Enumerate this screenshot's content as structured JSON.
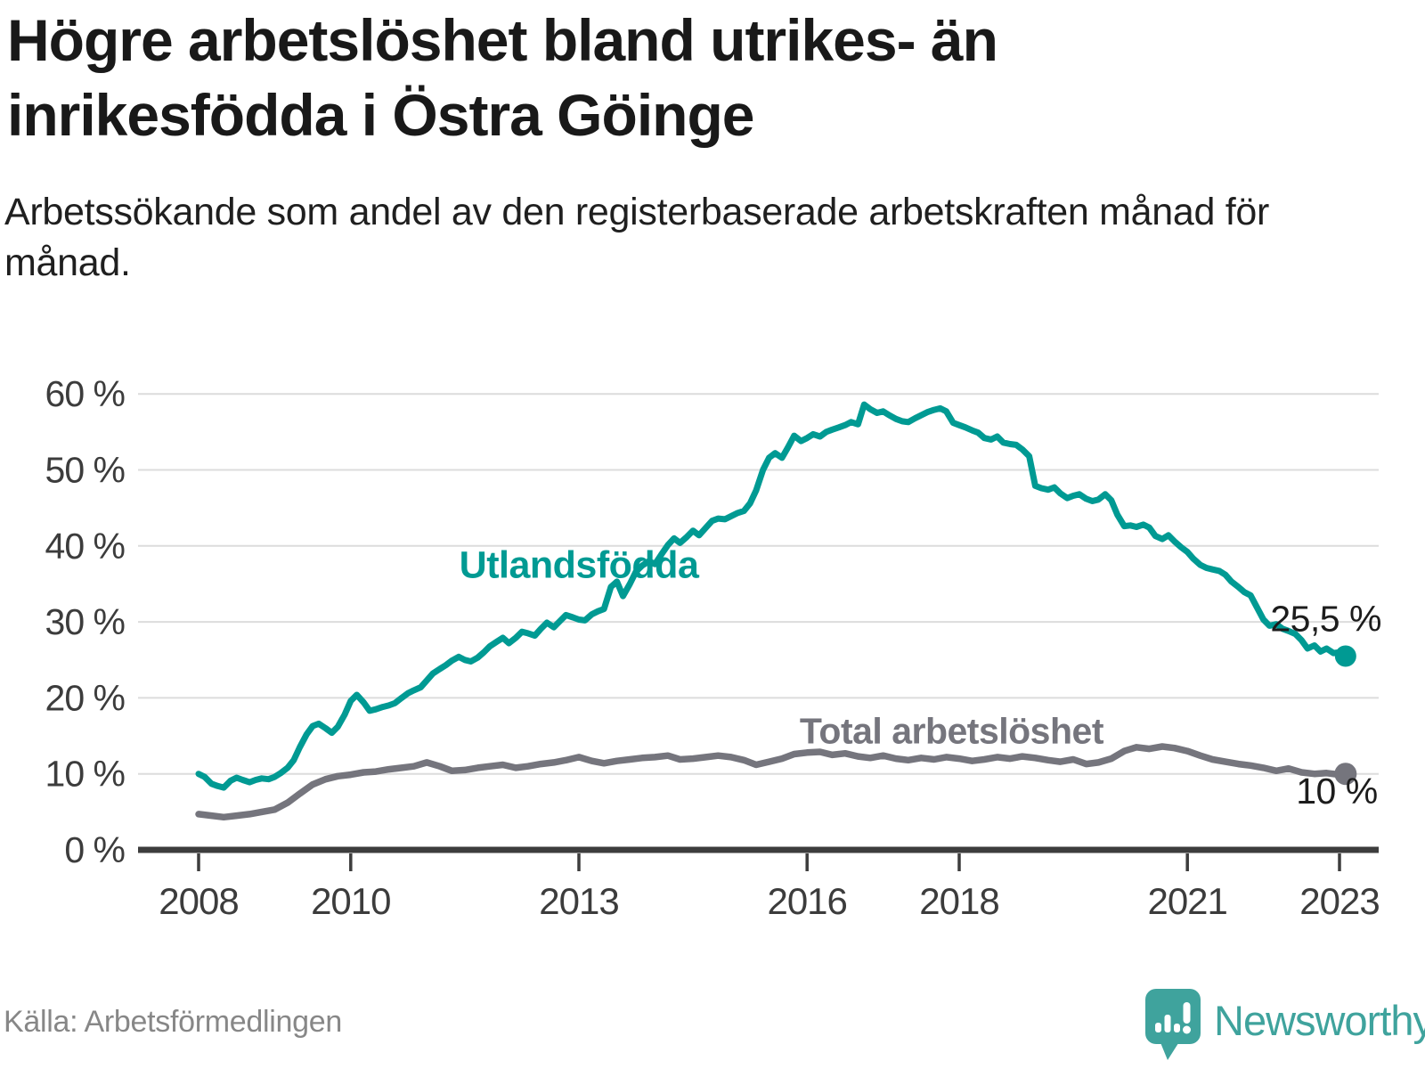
{
  "header": {
    "title": "Högre arbetslöshet bland utrikes- än inrikesfödda i Östra Göinge",
    "subtitle": "Arbetssökande som andel av den registerbaserade arbetskraften månad för månad."
  },
  "footer": {
    "source": "Källa: Arbetsförmedlingen",
    "brand": "Newsworthy"
  },
  "colors": {
    "foreign_born_line": "#009a93",
    "total_line": "#75757d",
    "grid": "#dcdcdc",
    "axis": "#3d3d3d",
    "tick_text": "#3c3c3c",
    "value_label": "#1c1c1c",
    "brand_teal": "#3fa39d"
  },
  "chart_data": {
    "type": "line",
    "title": "Högre arbetslöshet bland utrikes- än inrikesfödda i Östra Göinge",
    "xlabel": "",
    "ylabel": "Arbetssökande som andel av den registerbaserade arbetskraften",
    "xlim": [
      2007.2,
      2023.55
    ],
    "ylim": [
      0,
      62
    ],
    "grid": true,
    "x_ticks": [
      {
        "value": 2008,
        "label": "2008"
      },
      {
        "value": 2010,
        "label": "2010"
      },
      {
        "value": 2013,
        "label": "2013"
      },
      {
        "value": 2016,
        "label": "2016"
      },
      {
        "value": 2018,
        "label": "2018"
      },
      {
        "value": 2021,
        "label": "2021"
      },
      {
        "value": 2023,
        "label": "2023"
      }
    ],
    "y_ticks": [
      {
        "value": 0,
        "label": "0 %"
      },
      {
        "value": 10,
        "label": "10 %"
      },
      {
        "value": 20,
        "label": "20 %"
      },
      {
        "value": 30,
        "label": "30 %"
      },
      {
        "value": 40,
        "label": "40 %"
      },
      {
        "value": 50,
        "label": "50 %"
      },
      {
        "value": 60,
        "label": "60 %"
      }
    ],
    "series": [
      {
        "name": "Utlandsfödda",
        "color": "#009a93",
        "line_width": 7,
        "end_dot_radius": 12,
        "last_value": 25.5,
        "end_label": {
          "text": "25,5 %",
          "x": 2023.55,
          "y": 28.8,
          "anchor": "end"
        },
        "name_label": {
          "x": 2013.0,
          "y": 35.8,
          "anchor": "middle",
          "font_size": 43
        },
        "points": [
          [
            2008.0,
            10.0
          ],
          [
            2008.08,
            9.6
          ],
          [
            2008.17,
            8.7
          ],
          [
            2008.25,
            8.4
          ],
          [
            2008.33,
            8.2
          ],
          [
            2008.42,
            9.1
          ],
          [
            2008.5,
            9.5
          ],
          [
            2008.58,
            9.2
          ],
          [
            2008.67,
            8.9
          ],
          [
            2008.75,
            9.2
          ],
          [
            2008.83,
            9.4
          ],
          [
            2008.92,
            9.3
          ],
          [
            2009.0,
            9.6
          ],
          [
            2009.08,
            10.1
          ],
          [
            2009.17,
            10.8
          ],
          [
            2009.25,
            11.8
          ],
          [
            2009.33,
            13.5
          ],
          [
            2009.42,
            15.2
          ],
          [
            2009.5,
            16.3
          ],
          [
            2009.58,
            16.6
          ],
          [
            2009.67,
            16.0
          ],
          [
            2009.75,
            15.4
          ],
          [
            2009.83,
            16.2
          ],
          [
            2009.92,
            17.8
          ],
          [
            2010.0,
            19.6
          ],
          [
            2010.08,
            20.4
          ],
          [
            2010.17,
            19.4
          ],
          [
            2010.25,
            18.3
          ],
          [
            2010.33,
            18.5
          ],
          [
            2010.42,
            18.8
          ],
          [
            2010.5,
            19.0
          ],
          [
            2010.58,
            19.3
          ],
          [
            2010.67,
            20.0
          ],
          [
            2010.75,
            20.6
          ],
          [
            2010.83,
            21.0
          ],
          [
            2010.92,
            21.4
          ],
          [
            2011.0,
            22.3
          ],
          [
            2011.08,
            23.2
          ],
          [
            2011.17,
            23.8
          ],
          [
            2011.25,
            24.3
          ],
          [
            2011.33,
            24.9
          ],
          [
            2011.42,
            25.4
          ],
          [
            2011.5,
            25.0
          ],
          [
            2011.58,
            24.8
          ],
          [
            2011.67,
            25.3
          ],
          [
            2011.75,
            26.0
          ],
          [
            2011.83,
            26.8
          ],
          [
            2011.92,
            27.4
          ],
          [
            2012.0,
            27.9
          ],
          [
            2012.08,
            27.2
          ],
          [
            2012.17,
            27.9
          ],
          [
            2012.25,
            28.7
          ],
          [
            2012.33,
            28.5
          ],
          [
            2012.42,
            28.2
          ],
          [
            2012.5,
            29.1
          ],
          [
            2012.58,
            29.9
          ],
          [
            2012.67,
            29.3
          ],
          [
            2012.75,
            30.1
          ],
          [
            2012.83,
            30.9
          ],
          [
            2012.92,
            30.6
          ],
          [
            2013.0,
            30.3
          ],
          [
            2013.08,
            30.2
          ],
          [
            2013.17,
            31.0
          ],
          [
            2013.25,
            31.4
          ],
          [
            2013.33,
            31.7
          ],
          [
            2013.42,
            34.6
          ],
          [
            2013.5,
            35.3
          ],
          [
            2013.58,
            33.4
          ],
          [
            2013.67,
            35.0
          ],
          [
            2013.75,
            36.6
          ],
          [
            2013.83,
            37.4
          ],
          [
            2013.92,
            38.0
          ],
          [
            2014.0,
            37.6
          ],
          [
            2014.08,
            38.8
          ],
          [
            2014.17,
            40.1
          ],
          [
            2014.25,
            41.0
          ],
          [
            2014.33,
            40.4
          ],
          [
            2014.42,
            41.2
          ],
          [
            2014.5,
            42.0
          ],
          [
            2014.58,
            41.4
          ],
          [
            2014.67,
            42.4
          ],
          [
            2014.75,
            43.3
          ],
          [
            2014.83,
            43.6
          ],
          [
            2014.92,
            43.5
          ],
          [
            2015.0,
            43.9
          ],
          [
            2015.08,
            44.3
          ],
          [
            2015.17,
            44.6
          ],
          [
            2015.25,
            45.6
          ],
          [
            2015.33,
            47.3
          ],
          [
            2015.42,
            50.0
          ],
          [
            2015.5,
            51.6
          ],
          [
            2015.58,
            52.2
          ],
          [
            2015.67,
            51.6
          ],
          [
            2015.75,
            53.0
          ],
          [
            2015.83,
            54.5
          ],
          [
            2015.92,
            53.8
          ],
          [
            2016.0,
            54.2
          ],
          [
            2016.08,
            54.7
          ],
          [
            2016.17,
            54.4
          ],
          [
            2016.25,
            55.0
          ],
          [
            2016.33,
            55.3
          ],
          [
            2016.42,
            55.6
          ],
          [
            2016.5,
            55.9
          ],
          [
            2016.58,
            56.3
          ],
          [
            2016.67,
            56.0
          ],
          [
            2016.75,
            58.6
          ],
          [
            2016.83,
            58.0
          ],
          [
            2016.92,
            57.5
          ],
          [
            2017.0,
            57.7
          ],
          [
            2017.08,
            57.2
          ],
          [
            2017.17,
            56.7
          ],
          [
            2017.25,
            56.4
          ],
          [
            2017.33,
            56.3
          ],
          [
            2017.42,
            56.8
          ],
          [
            2017.5,
            57.2
          ],
          [
            2017.58,
            57.6
          ],
          [
            2017.67,
            57.9
          ],
          [
            2017.75,
            58.1
          ],
          [
            2017.83,
            57.7
          ],
          [
            2017.92,
            56.2
          ],
          [
            2018.0,
            55.9
          ],
          [
            2018.08,
            55.6
          ],
          [
            2018.17,
            55.2
          ],
          [
            2018.25,
            54.9
          ],
          [
            2018.33,
            54.2
          ],
          [
            2018.42,
            54.0
          ],
          [
            2018.5,
            54.4
          ],
          [
            2018.58,
            53.6
          ],
          [
            2018.67,
            53.4
          ],
          [
            2018.75,
            53.3
          ],
          [
            2018.83,
            52.7
          ],
          [
            2018.92,
            51.8
          ],
          [
            2019.0,
            47.9
          ],
          [
            2019.08,
            47.6
          ],
          [
            2019.17,
            47.4
          ],
          [
            2019.25,
            47.7
          ],
          [
            2019.33,
            46.9
          ],
          [
            2019.42,
            46.3
          ],
          [
            2019.5,
            46.6
          ],
          [
            2019.58,
            46.8
          ],
          [
            2019.67,
            46.2
          ],
          [
            2019.75,
            45.9
          ],
          [
            2019.83,
            46.1
          ],
          [
            2019.92,
            46.8
          ],
          [
            2020.0,
            46.0
          ],
          [
            2020.08,
            44.1
          ],
          [
            2020.17,
            42.6
          ],
          [
            2020.25,
            42.7
          ],
          [
            2020.33,
            42.5
          ],
          [
            2020.42,
            42.8
          ],
          [
            2020.5,
            42.4
          ],
          [
            2020.58,
            41.3
          ],
          [
            2020.67,
            40.9
          ],
          [
            2020.75,
            41.4
          ],
          [
            2020.83,
            40.6
          ],
          [
            2020.92,
            39.8
          ],
          [
            2021.0,
            39.2
          ],
          [
            2021.08,
            38.3
          ],
          [
            2021.17,
            37.5
          ],
          [
            2021.25,
            37.1
          ],
          [
            2021.33,
            36.9
          ],
          [
            2021.42,
            36.7
          ],
          [
            2021.5,
            36.2
          ],
          [
            2021.58,
            35.3
          ],
          [
            2021.67,
            34.6
          ],
          [
            2021.75,
            33.9
          ],
          [
            2021.83,
            33.5
          ],
          [
            2021.92,
            31.8
          ],
          [
            2022.0,
            30.3
          ],
          [
            2022.08,
            29.5
          ],
          [
            2022.17,
            29.7
          ],
          [
            2022.25,
            29.1
          ],
          [
            2022.33,
            28.8
          ],
          [
            2022.42,
            28.4
          ],
          [
            2022.5,
            27.6
          ],
          [
            2022.58,
            26.5
          ],
          [
            2022.67,
            26.9
          ],
          [
            2022.75,
            26.1
          ],
          [
            2022.83,
            26.5
          ],
          [
            2022.92,
            25.9
          ],
          [
            2023.0,
            26.0
          ],
          [
            2023.08,
            25.5
          ]
        ]
      },
      {
        "name": "Total arbetslöshet",
        "color": "#75757d",
        "line_width": 7.5,
        "end_dot_radius": 12.5,
        "last_value": 10,
        "end_label": {
          "text": "10 %",
          "x": 2023.5,
          "y": 6.1,
          "anchor": "end"
        },
        "name_label": {
          "x": 2017.9,
          "y": 14.0,
          "anchor": "middle",
          "font_size": 41
        },
        "points": [
          [
            2008.0,
            4.7
          ],
          [
            2008.17,
            4.5
          ],
          [
            2008.33,
            4.3
          ],
          [
            2008.5,
            4.5
          ],
          [
            2008.67,
            4.7
          ],
          [
            2008.83,
            5.0
          ],
          [
            2009.0,
            5.3
          ],
          [
            2009.17,
            6.2
          ],
          [
            2009.33,
            7.4
          ],
          [
            2009.5,
            8.6
          ],
          [
            2009.67,
            9.3
          ],
          [
            2009.83,
            9.7
          ],
          [
            2010.0,
            9.9
          ],
          [
            2010.17,
            10.2
          ],
          [
            2010.33,
            10.3
          ],
          [
            2010.5,
            10.6
          ],
          [
            2010.67,
            10.8
          ],
          [
            2010.83,
            11.0
          ],
          [
            2011.0,
            11.5
          ],
          [
            2011.17,
            11.0
          ],
          [
            2011.33,
            10.4
          ],
          [
            2011.5,
            10.5
          ],
          [
            2011.67,
            10.8
          ],
          [
            2011.83,
            11.0
          ],
          [
            2012.0,
            11.2
          ],
          [
            2012.17,
            10.8
          ],
          [
            2012.33,
            11.0
          ],
          [
            2012.5,
            11.3
          ],
          [
            2012.67,
            11.5
          ],
          [
            2012.83,
            11.8
          ],
          [
            2013.0,
            12.2
          ],
          [
            2013.17,
            11.7
          ],
          [
            2013.33,
            11.4
          ],
          [
            2013.5,
            11.7
          ],
          [
            2013.67,
            11.9
          ],
          [
            2013.83,
            12.1
          ],
          [
            2014.0,
            12.2
          ],
          [
            2014.17,
            12.4
          ],
          [
            2014.33,
            11.9
          ],
          [
            2014.5,
            12.0
          ],
          [
            2014.67,
            12.2
          ],
          [
            2014.83,
            12.4
          ],
          [
            2015.0,
            12.2
          ],
          [
            2015.17,
            11.8
          ],
          [
            2015.33,
            11.2
          ],
          [
            2015.5,
            11.6
          ],
          [
            2015.67,
            12.0
          ],
          [
            2015.83,
            12.6
          ],
          [
            2016.0,
            12.8
          ],
          [
            2016.17,
            12.9
          ],
          [
            2016.33,
            12.5
          ],
          [
            2016.5,
            12.7
          ],
          [
            2016.67,
            12.3
          ],
          [
            2016.83,
            12.1
          ],
          [
            2017.0,
            12.4
          ],
          [
            2017.17,
            12.0
          ],
          [
            2017.33,
            11.8
          ],
          [
            2017.5,
            12.1
          ],
          [
            2017.67,
            11.9
          ],
          [
            2017.83,
            12.2
          ],
          [
            2018.0,
            12.0
          ],
          [
            2018.17,
            11.7
          ],
          [
            2018.33,
            11.9
          ],
          [
            2018.5,
            12.2
          ],
          [
            2018.67,
            12.0
          ],
          [
            2018.83,
            12.3
          ],
          [
            2019.0,
            12.1
          ],
          [
            2019.17,
            11.8
          ],
          [
            2019.33,
            11.6
          ],
          [
            2019.5,
            11.9
          ],
          [
            2019.67,
            11.3
          ],
          [
            2019.83,
            11.5
          ],
          [
            2020.0,
            12.0
          ],
          [
            2020.17,
            13.0
          ],
          [
            2020.33,
            13.5
          ],
          [
            2020.5,
            13.3
          ],
          [
            2020.67,
            13.6
          ],
          [
            2020.83,
            13.4
          ],
          [
            2021.0,
            13.0
          ],
          [
            2021.17,
            12.4
          ],
          [
            2021.33,
            11.9
          ],
          [
            2021.5,
            11.6
          ],
          [
            2021.67,
            11.3
          ],
          [
            2021.83,
            11.1
          ],
          [
            2022.0,
            10.8
          ],
          [
            2022.17,
            10.4
          ],
          [
            2022.33,
            10.7
          ],
          [
            2022.5,
            10.2
          ],
          [
            2022.67,
            10.0
          ],
          [
            2022.83,
            10.1
          ],
          [
            2023.0,
            9.9
          ],
          [
            2023.08,
            10.0
          ]
        ]
      }
    ]
  }
}
